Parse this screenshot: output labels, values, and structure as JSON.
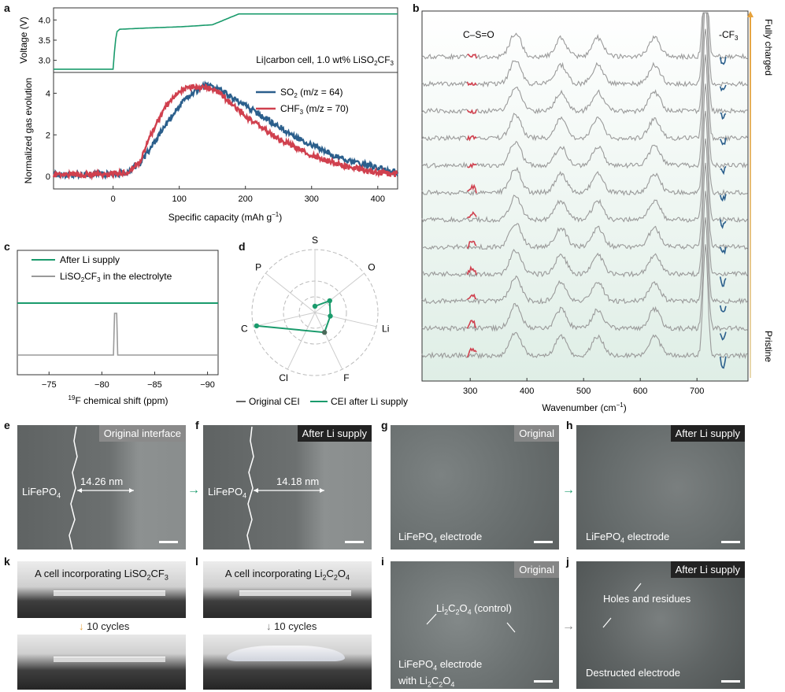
{
  "panel_labels": {
    "a": "a",
    "b": "b",
    "c": "c",
    "d": "d",
    "e": "e",
    "f": "f",
    "g": "g",
    "h": "h",
    "i": "i",
    "j": "j",
    "k": "k",
    "l": "l"
  },
  "colors": {
    "green": "#1a9b6c",
    "blue": "#2b5f8c",
    "red": "#d0404e",
    "grey": "#9a9a9a",
    "photo_bg": "#7a7e80"
  },
  "panel_a": {
    "top_ylabel": "Voltage (V)",
    "top_yticks": [
      "4.0",
      "3.5",
      "3.0"
    ],
    "cell_annotation": "Li|carbon cell, 1.0 wt% LiSO",
    "cell_annotation_sub": "2",
    "cell_annotation_end": "CF",
    "cell_annotation_sub2": "3",
    "bottom_ylabel": "Normalized gas evolution",
    "bottom_yticks": [
      "4",
      "2",
      "0"
    ],
    "xticks": [
      "0",
      "100",
      "200",
      "300",
      "400"
    ],
    "xlabel": "Specific capacity (mAh g",
    "xlabel_sup": "−1",
    "xlabel_end": ")",
    "legend_so2": "SO",
    "legend_so2_sub": "2",
    "legend_so2_mz": " (m/z = 64)",
    "legend_chf3": "CHF",
    "legend_chf3_sub": "3",
    "legend_chf3_mz": " (m/z = 70)"
  },
  "panel_b": {
    "label_cso": "C–S=O",
    "label_cf3": "-CF",
    "label_cf3_sub": "3",
    "fully_charged": "Fully charged",
    "pristine": "Pristine",
    "xticks": [
      "300",
      "400",
      "500",
      "600",
      "700"
    ],
    "xlabel": "Wavenumber (cm",
    "xlabel_sup": "−1",
    "xlabel_end": ")",
    "peaks_cm": [
      380,
      460,
      525,
      625,
      715
    ]
  },
  "panel_c": {
    "legend_after": "After Li supply",
    "legend_liso2cf3": "LiSO",
    "legend_liso2cf3_sub": "2",
    "legend_liso2cf3_mid": "CF",
    "legend_liso2cf3_sub2": "3",
    "legend_liso2cf3_end": " in the electrolyte",
    "xticks": [
      "−75",
      "−80",
      "−85",
      "−90"
    ],
    "xlabel_sup": "19",
    "xlabel": "F chemical shift (ppm)"
  },
  "panel_d": {
    "axes": [
      "S",
      "O",
      "Li",
      "F",
      "Cl",
      "C",
      "P"
    ],
    "legend_original": "Original CEI",
    "legend_after": "CEI after Li supply"
  },
  "panel_e": {
    "tag": "Original interface",
    "material": "LiFePO",
    "material_sub": "4",
    "thickness": "14.26 nm"
  },
  "panel_f": {
    "tag": "After Li supply",
    "material": "LiFePO",
    "material_sub": "4",
    "thickness": "14.18 nm"
  },
  "panel_g": {
    "tag": "Original",
    "caption": "LiFePO",
    "caption_sub": "4",
    "caption_end": " electrode"
  },
  "panel_h": {
    "tag": "After Li supply",
    "caption": "LiFePO",
    "caption_sub": "4",
    "caption_end": " electrode"
  },
  "panel_i": {
    "tag": "Original",
    "label_a": "Li",
    "label_a_sub": "2",
    "label_b": "C",
    "label_b_sub": "2",
    "label_c": "O",
    "label_c_sub": "4",
    "label_end": " (control)",
    "caption_line1": "LiFePO",
    "caption_line1_sub": "4",
    "caption_line1_end": " electrode",
    "caption_line2": "with Li",
    "caption_line2_sub": "2",
    "caption_line2_mid": "C",
    "caption_line2_sub2": "2",
    "caption_line2_mid2": "O",
    "caption_line2_sub3": "4"
  },
  "panel_j": {
    "tag": "After Li supply",
    "holes": "Holes and residues",
    "caption": "Destructed electrode"
  },
  "panel_k": {
    "title": "A cell incorporating LiSO",
    "title_sub": "2",
    "title_mid": "CF",
    "title_sub2": "3",
    "cycles": "10 cycles"
  },
  "panel_l": {
    "title": "A cell incorporating Li",
    "title_sub": "2",
    "title_mid": "C",
    "title_sub2": "2",
    "title_mid2": "O",
    "title_sub3": "4",
    "cycles": "10 cycles"
  },
  "chart_data": [
    {
      "type": "line",
      "title": "",
      "xlabel": "Specific capacity (mAh g−1)",
      "ylabel": "Voltage (V)",
      "xlim": [
        -90,
        430
      ],
      "ylim": [
        2.7,
        4.3
      ],
      "series": [
        {
          "name": "Voltage",
          "x": [
            -90,
            0,
            2,
            5,
            10,
            50,
            100,
            150,
            190,
            430
          ],
          "values": [
            2.78,
            2.78,
            3.2,
            3.7,
            3.77,
            3.8,
            3.83,
            3.88,
            4.15,
            4.15
          ]
        }
      ]
    },
    {
      "type": "line",
      "title": "",
      "xlabel": "Specific capacity (mAh g−1)",
      "ylabel": "Normalized gas evolution",
      "xlim": [
        -90,
        430
      ],
      "ylim": [
        -0.6,
        5
      ],
      "series": [
        {
          "name": "SO2 (m/z = 64)",
          "x": [
            -90,
            0,
            20,
            40,
            60,
            80,
            100,
            120,
            140,
            160,
            200,
            250,
            300,
            350,
            400,
            430
          ],
          "values": [
            0.1,
            0.1,
            0.2,
            0.6,
            1.5,
            2.5,
            3.4,
            4.0,
            4.4,
            4.2,
            3.4,
            2.4,
            1.5,
            0.8,
            0.4,
            0.2
          ]
        },
        {
          "name": "CHF3 (m/z = 70)",
          "x": [
            -90,
            0,
            20,
            40,
            60,
            80,
            100,
            120,
            140,
            160,
            200,
            250,
            300,
            350,
            400,
            430
          ],
          "values": [
            0.1,
            0.1,
            0.2,
            0.7,
            2.2,
            3.4,
            4.1,
            4.3,
            4.3,
            4.0,
            2.9,
            1.8,
            1.0,
            0.5,
            0.2,
            0.1
          ]
        }
      ]
    },
    {
      "type": "line",
      "title": "",
      "xlabel": "19F chemical shift (ppm)",
      "ylabel": "",
      "xlim": [
        -72,
        -91
      ],
      "series": [
        {
          "name": "After Li supply",
          "peak_ppm": null
        },
        {
          "name": "LiSO2CF3 in the electrolyte",
          "peak_ppm": -81.3
        }
      ]
    },
    {
      "type": "radar",
      "categories": [
        "S",
        "O",
        "Li",
        "F",
        "Cl",
        "C",
        "P"
      ],
      "series": [
        {
          "name": "CEI after Li supply",
          "values": [
            0.1,
            0.3,
            0.25,
            0.35,
            0.0,
            0.95,
            0.0
          ]
        }
      ]
    }
  ]
}
